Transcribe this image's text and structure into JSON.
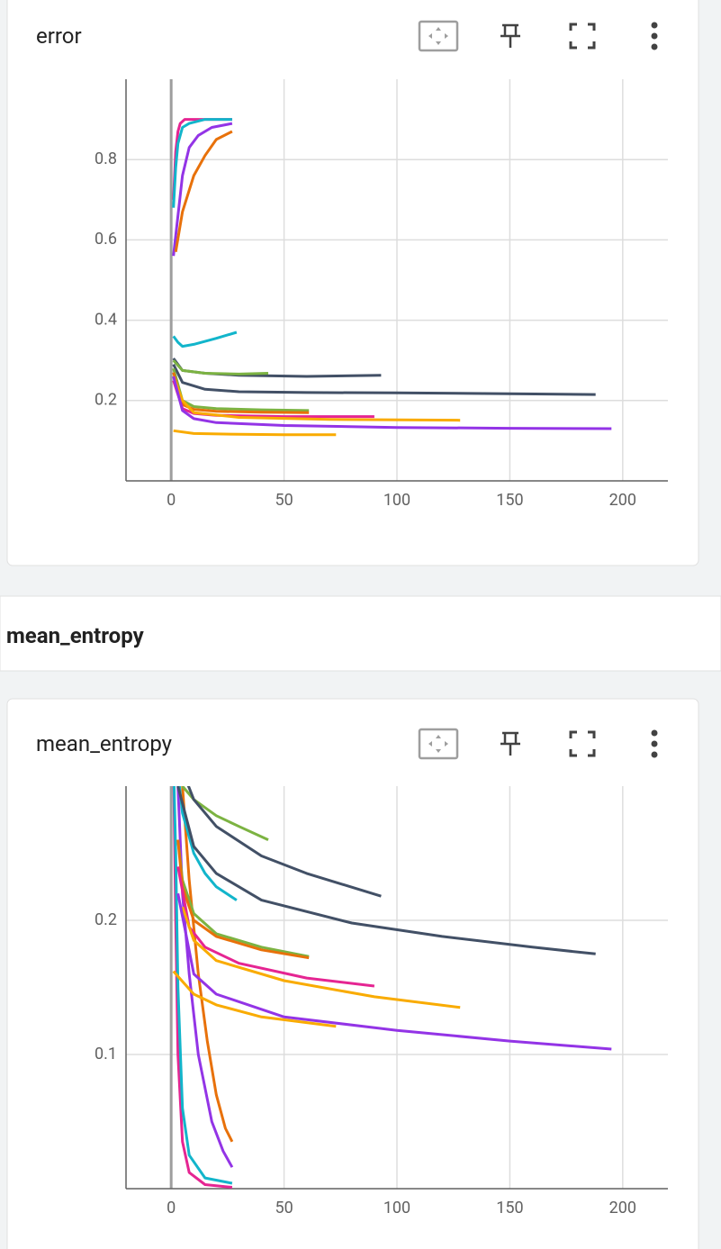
{
  "section_title": "mean_entropy",
  "chart_data": [
    {
      "type": "line",
      "title": "error",
      "xlim": [
        -20,
        220
      ],
      "ylim": [
        0,
        1
      ],
      "xticks": [
        0,
        50,
        100,
        150,
        200
      ],
      "yticks": [
        0.2,
        0.4,
        0.6,
        0.8
      ],
      "grid": true,
      "series": [
        {
          "color": "#e52592",
          "x": [
            1,
            2,
            3,
            4,
            6,
            10,
            27
          ],
          "values": [
            0.7,
            0.82,
            0.87,
            0.89,
            0.9,
            0.9,
            0.9
          ]
        },
        {
          "color": "#12b5cb",
          "x": [
            1,
            2,
            3,
            5,
            8,
            15,
            27
          ],
          "values": [
            0.68,
            0.78,
            0.84,
            0.88,
            0.89,
            0.9,
            0.9
          ]
        },
        {
          "color": "#9334e6",
          "x": [
            1,
            3,
            5,
            8,
            12,
            18,
            27
          ],
          "values": [
            0.56,
            0.66,
            0.76,
            0.83,
            0.86,
            0.88,
            0.89
          ]
        },
        {
          "color": "#e8710a",
          "x": [
            2,
            5,
            10,
            15,
            20,
            27
          ],
          "values": [
            0.57,
            0.67,
            0.76,
            0.81,
            0.85,
            0.87
          ]
        },
        {
          "color": "#12b5cb",
          "x": [
            1,
            3,
            5,
            10,
            20,
            29
          ],
          "values": [
            0.36,
            0.345,
            0.335,
            0.34,
            0.355,
            0.37
          ]
        },
        {
          "color": "#425066",
          "x": [
            1,
            5,
            15,
            30,
            60,
            93
          ],
          "values": [
            0.305,
            0.275,
            0.268,
            0.263,
            0.26,
            0.263
          ]
        },
        {
          "color": "#7cb342",
          "x": [
            1,
            5,
            15,
            30,
            43
          ],
          "values": [
            0.3,
            0.275,
            0.268,
            0.266,
            0.268
          ]
        },
        {
          "color": "#425066",
          "x": [
            1,
            5,
            15,
            30,
            60,
            100,
            150,
            188
          ],
          "values": [
            0.29,
            0.245,
            0.228,
            0.222,
            0.22,
            0.219,
            0.217,
            0.215
          ]
        },
        {
          "color": "#7cb342",
          "x": [
            1,
            5,
            10,
            20,
            40,
            61
          ],
          "values": [
            0.28,
            0.2,
            0.185,
            0.18,
            0.177,
            0.175
          ]
        },
        {
          "color": "#e8710a",
          "x": [
            1,
            5,
            10,
            20,
            40,
            61
          ],
          "values": [
            0.27,
            0.19,
            0.178,
            0.173,
            0.171,
            0.17
          ]
        },
        {
          "color": "#e52592",
          "x": [
            1,
            5,
            10,
            20,
            50,
            90
          ],
          "values": [
            0.25,
            0.18,
            0.168,
            0.163,
            0.16,
            0.16
          ]
        },
        {
          "color": "#f9ab00",
          "x": [
            1,
            5,
            10,
            30,
            70,
            128
          ],
          "values": [
            0.26,
            0.2,
            0.17,
            0.158,
            0.153,
            0.151
          ]
        },
        {
          "color": "#9334e6",
          "x": [
            1,
            5,
            10,
            20,
            50,
            100,
            150,
            195
          ],
          "values": [
            0.26,
            0.175,
            0.155,
            0.145,
            0.138,
            0.133,
            0.131,
            0.13
          ]
        },
        {
          "color": "#f9ab00",
          "x": [
            1,
            10,
            30,
            50,
            73
          ],
          "values": [
            0.125,
            0.118,
            0.116,
            0.115,
            0.115
          ]
        }
      ]
    },
    {
      "type": "line",
      "title": "mean_entropy",
      "xlim": [
        -20,
        220
      ],
      "ylim": [
        0,
        0.3
      ],
      "xticks": [
        0,
        50,
        100,
        150,
        200
      ],
      "yticks": [
        0.1,
        0.2
      ],
      "grid": true,
      "series": [
        {
          "color": "#e52592",
          "x": [
            1,
            2,
            3,
            5,
            8,
            15,
            27
          ],
          "values": [
            0.32,
            0.2,
            0.1,
            0.035,
            0.012,
            0.003,
            0.001
          ]
        },
        {
          "color": "#12b5cb",
          "x": [
            1,
            2,
            3,
            5,
            8,
            15,
            27
          ],
          "values": [
            0.32,
            0.25,
            0.15,
            0.06,
            0.025,
            0.008,
            0.004
          ]
        },
        {
          "color": "#9334e6",
          "x": [
            3,
            5,
            8,
            12,
            18,
            23,
            27
          ],
          "values": [
            0.3,
            0.22,
            0.16,
            0.1,
            0.05,
            0.028,
            0.016
          ]
        },
        {
          "color": "#e8710a",
          "x": [
            5,
            8,
            12,
            16,
            20,
            24,
            27
          ],
          "values": [
            0.3,
            0.23,
            0.16,
            0.11,
            0.07,
            0.045,
            0.035
          ]
        },
        {
          "color": "#12b5cb",
          "x": [
            3,
            5,
            10,
            15,
            20,
            29
          ],
          "values": [
            0.31,
            0.28,
            0.25,
            0.235,
            0.225,
            0.215
          ]
        },
        {
          "color": "#7cb342",
          "x": [
            5,
            10,
            20,
            30,
            43
          ],
          "values": [
            0.3,
            0.29,
            0.278,
            0.27,
            0.26
          ]
        },
        {
          "color": "#425066",
          "x": [
            3,
            10,
            20,
            40,
            60,
            93
          ],
          "values": [
            0.32,
            0.29,
            0.27,
            0.248,
            0.235,
            0.218
          ]
        },
        {
          "color": "#425066",
          "x": [
            3,
            10,
            20,
            40,
            80,
            120,
            160,
            188
          ],
          "values": [
            0.3,
            0.255,
            0.235,
            0.215,
            0.198,
            0.188,
            0.18,
            0.175
          ]
        },
        {
          "color": "#7cb342",
          "x": [
            3,
            5,
            10,
            20,
            40,
            61
          ],
          "values": [
            0.26,
            0.23,
            0.205,
            0.19,
            0.18,
            0.173
          ]
        },
        {
          "color": "#e8710a",
          "x": [
            3,
            5,
            10,
            20,
            40,
            61
          ],
          "values": [
            0.26,
            0.225,
            0.2,
            0.188,
            0.178,
            0.172
          ]
        },
        {
          "color": "#e52592",
          "x": [
            3,
            8,
            15,
            30,
            60,
            90
          ],
          "values": [
            0.24,
            0.195,
            0.18,
            0.168,
            0.157,
            0.151
          ]
        },
        {
          "color": "#f9ab00",
          "x": [
            5,
            10,
            20,
            50,
            90,
            128
          ],
          "values": [
            0.21,
            0.185,
            0.17,
            0.155,
            0.143,
            0.135
          ]
        },
        {
          "color": "#9334e6",
          "x": [
            3,
            10,
            20,
            50,
            100,
            150,
            195
          ],
          "values": [
            0.22,
            0.16,
            0.145,
            0.128,
            0.118,
            0.11,
            0.104
          ]
        },
        {
          "color": "#f9ab00",
          "x": [
            1,
            10,
            20,
            40,
            73
          ],
          "values": [
            0.162,
            0.145,
            0.137,
            0.128,
            0.121
          ]
        }
      ]
    }
  ]
}
